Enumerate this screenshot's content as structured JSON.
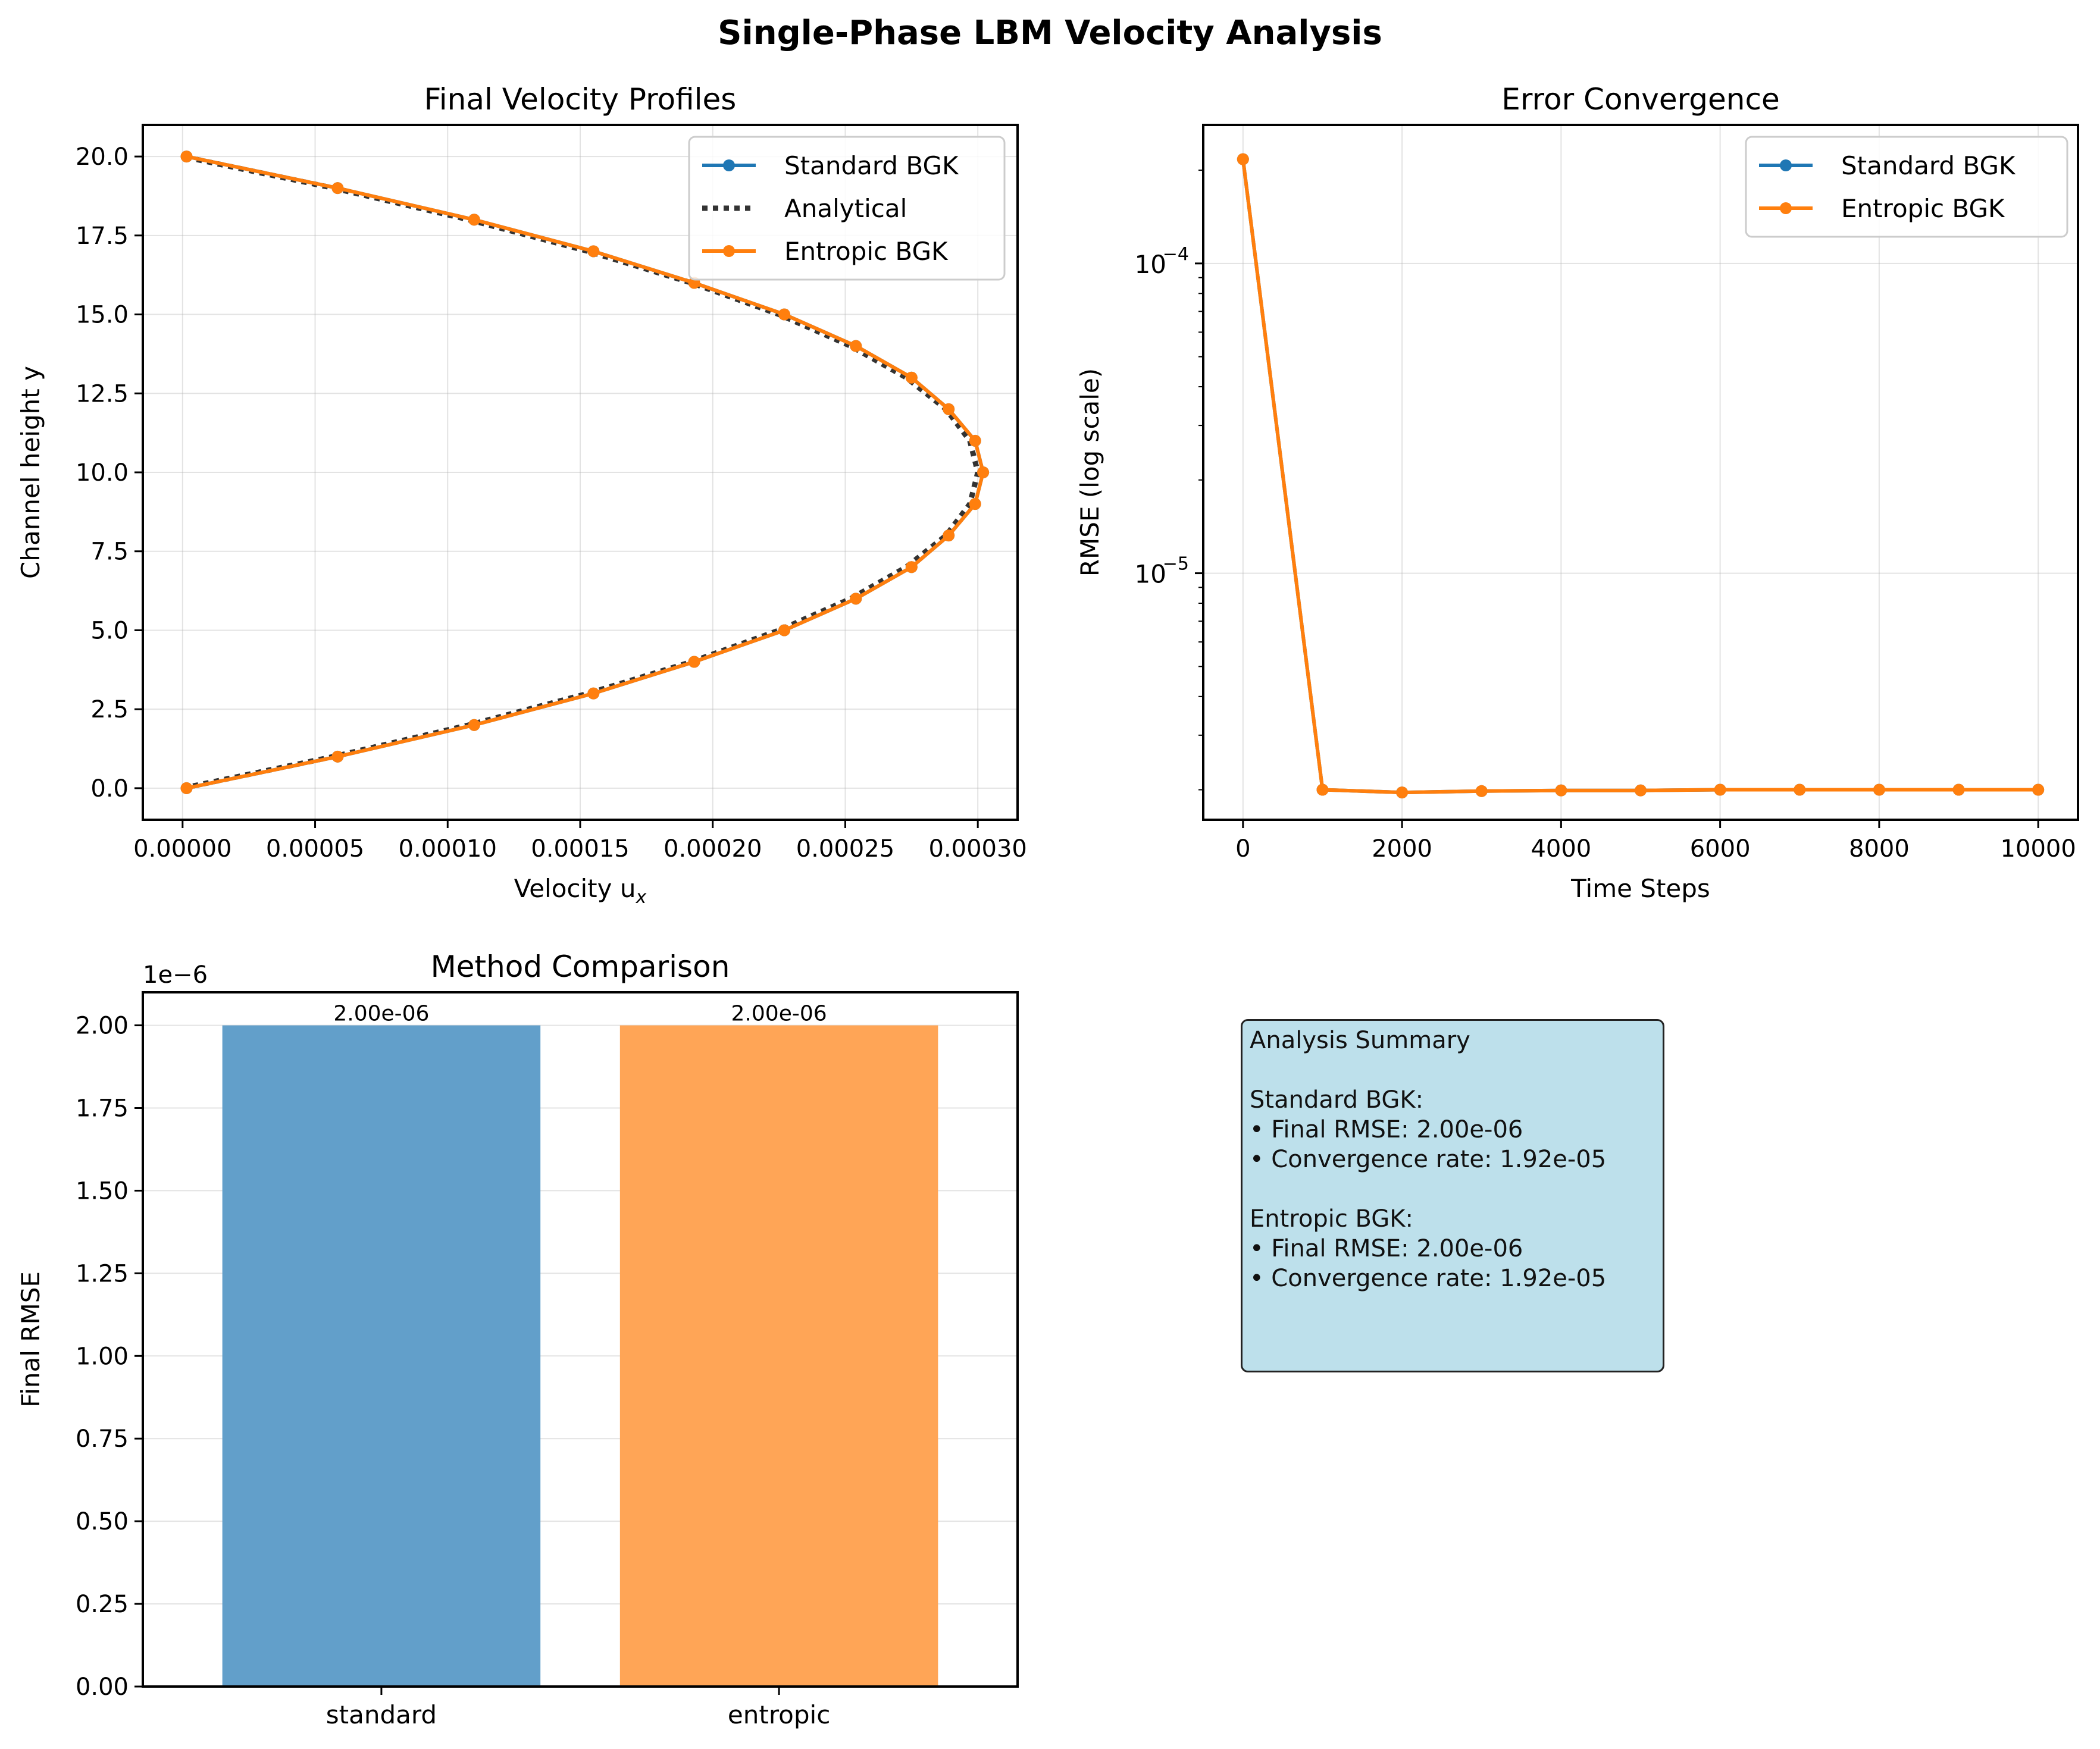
{
  "figure": {
    "suptitle": "Single-Phase LBM Velocity Analysis"
  },
  "colors": {
    "standard": "#1f77b4",
    "entropic": "#ff7f0e",
    "analytical": "#333333",
    "bar_standard": "#629fca",
    "bar_entropic": "#ffa556",
    "summary_bg": "#add8e6"
  },
  "chart_data": [
    {
      "id": "profiles",
      "type": "line",
      "title": "Final Velocity Profiles",
      "xlabel": "Velocity u",
      "xlabel_sub": "x",
      "ylabel": "Channel height y",
      "xlim": [
        -1.5e-05,
        0.000315
      ],
      "ylim": [
        -1.0,
        21.0
      ],
      "xticks": [
        0,
        5e-05,
        0.0001,
        0.00015,
        0.0002,
        0.00025,
        0.0003
      ],
      "xtick_labels": [
        "0.00000",
        "0.00005",
        "0.00010",
        "0.00015",
        "0.00020",
        "0.00025",
        "0.00030"
      ],
      "yticks": [
        0,
        2.5,
        5,
        7.5,
        10,
        12.5,
        15,
        17.5,
        20
      ],
      "ytick_labels": [
        "0.0",
        "2.5",
        "5.0",
        "7.5",
        "10.0",
        "12.5",
        "15.0",
        "17.5",
        "20.0"
      ],
      "grid": true,
      "legend_position": "upper right",
      "series": [
        {
          "name": "Standard BGK",
          "style": "line-marker",
          "color": "#1f77b4",
          "y": [
            0,
            1,
            2,
            3,
            4,
            5,
            6,
            7,
            8,
            9,
            10,
            11,
            12,
            13,
            14,
            15,
            16,
            17,
            18,
            19,
            20
          ],
          "x": [
            1.5e-06,
            5.85e-05,
            0.00011,
            0.000155,
            0.000193,
            0.000227,
            0.000254,
            0.000275,
            0.000289,
            0.000299,
            0.000302,
            0.000299,
            0.000289,
            0.000275,
            0.000254,
            0.000227,
            0.000193,
            0.000155,
            0.00011,
            5.85e-05,
            1.5e-06
          ]
        },
        {
          "name": "Analytical",
          "style": "dotted",
          "color": "#333333",
          "y": [
            0,
            1,
            2,
            3,
            4,
            5,
            6,
            7,
            8,
            9,
            10,
            11,
            12,
            13,
            14,
            15,
            16,
            17,
            18,
            19,
            20
          ],
          "x": [
            0,
            5.7e-05,
            0.000108,
            0.000153,
            0.000192,
            0.000225,
            0.000252,
            0.000273,
            0.000288,
            0.000297,
            0.0003,
            0.000297,
            0.000288,
            0.000273,
            0.000252,
            0.000225,
            0.000192,
            0.000153,
            0.000108,
            5.7e-05,
            0
          ]
        },
        {
          "name": "Entropic BGK",
          "style": "line-marker",
          "color": "#ff7f0e",
          "y": [
            0,
            1,
            2,
            3,
            4,
            5,
            6,
            7,
            8,
            9,
            10,
            11,
            12,
            13,
            14,
            15,
            16,
            17,
            18,
            19,
            20
          ],
          "x": [
            1.5e-06,
            5.85e-05,
            0.00011,
            0.000155,
            0.000193,
            0.000227,
            0.000254,
            0.000275,
            0.000289,
            0.000299,
            0.000302,
            0.000299,
            0.000289,
            0.000275,
            0.000254,
            0.000227,
            0.000193,
            0.000155,
            0.00011,
            5.85e-05,
            1.5e-06
          ]
        }
      ]
    },
    {
      "id": "convergence",
      "type": "line",
      "title": "Error Convergence",
      "xlabel": "Time Steps",
      "ylabel": "RMSE (log scale)",
      "yscale": "log",
      "xlim": [
        -500,
        10500
      ],
      "ylim": [
        1.6e-06,
        0.00028
      ],
      "xticks": [
        0,
        2000,
        4000,
        6000,
        8000,
        10000
      ],
      "xtick_labels": [
        "0",
        "2000",
        "4000",
        "6000",
        "8000",
        "10000"
      ],
      "ytick_major": [
        1e-05,
        0.0001
      ],
      "ytick_labels": [
        "10^-5",
        "10^-4"
      ],
      "grid": true,
      "legend_position": "upper right",
      "series": [
        {
          "name": "Standard BGK",
          "color": "#1f77b4",
          "x": [
            0,
            1000,
            2000,
            3000,
            4000,
            5000,
            6000,
            7000,
            8000,
            9000,
            10000
          ],
          "y": [
            0.000217,
            2e-06,
            1.96e-06,
            1.98e-06,
            1.99e-06,
            1.99e-06,
            2e-06,
            2e-06,
            2e-06,
            2e-06,
            2e-06
          ]
        },
        {
          "name": "Entropic BGK",
          "color": "#ff7f0e",
          "x": [
            0,
            1000,
            2000,
            3000,
            4000,
            5000,
            6000,
            7000,
            8000,
            9000,
            10000
          ],
          "y": [
            0.000217,
            2e-06,
            1.96e-06,
            1.98e-06,
            1.99e-06,
            1.99e-06,
            2e-06,
            2e-06,
            2e-06,
            2e-06,
            2e-06
          ]
        }
      ]
    },
    {
      "id": "comparison",
      "type": "bar",
      "title": "Method Comparison",
      "ylabel": "Final RMSE",
      "offset_label": "1e−6",
      "categories": [
        "standard",
        "entropic"
      ],
      "values": [
        2.0,
        2.0
      ],
      "value_labels": [
        "2.00e-06",
        "2.00e-06"
      ],
      "ylim": [
        0,
        2.1
      ],
      "yticks": [
        0,
        0.25,
        0.5,
        0.75,
        1.0,
        1.25,
        1.5,
        1.75,
        2.0
      ],
      "ytick_labels": [
        "0.00",
        "0.25",
        "0.50",
        "0.75",
        "1.00",
        "1.25",
        "1.50",
        "1.75",
        "2.00"
      ],
      "grid": true,
      "bar_colors": [
        "#629fca",
        "#ffa556"
      ]
    }
  ],
  "summary": {
    "lines": [
      "Analysis Summary",
      "",
      "Standard BGK:",
      "• Final RMSE: 2.00e-06",
      "• Convergence rate: 1.92e-05",
      "",
      "Entropic BGK:",
      "• Final RMSE: 2.00e-06",
      "• Convergence rate: 1.92e-05"
    ]
  }
}
